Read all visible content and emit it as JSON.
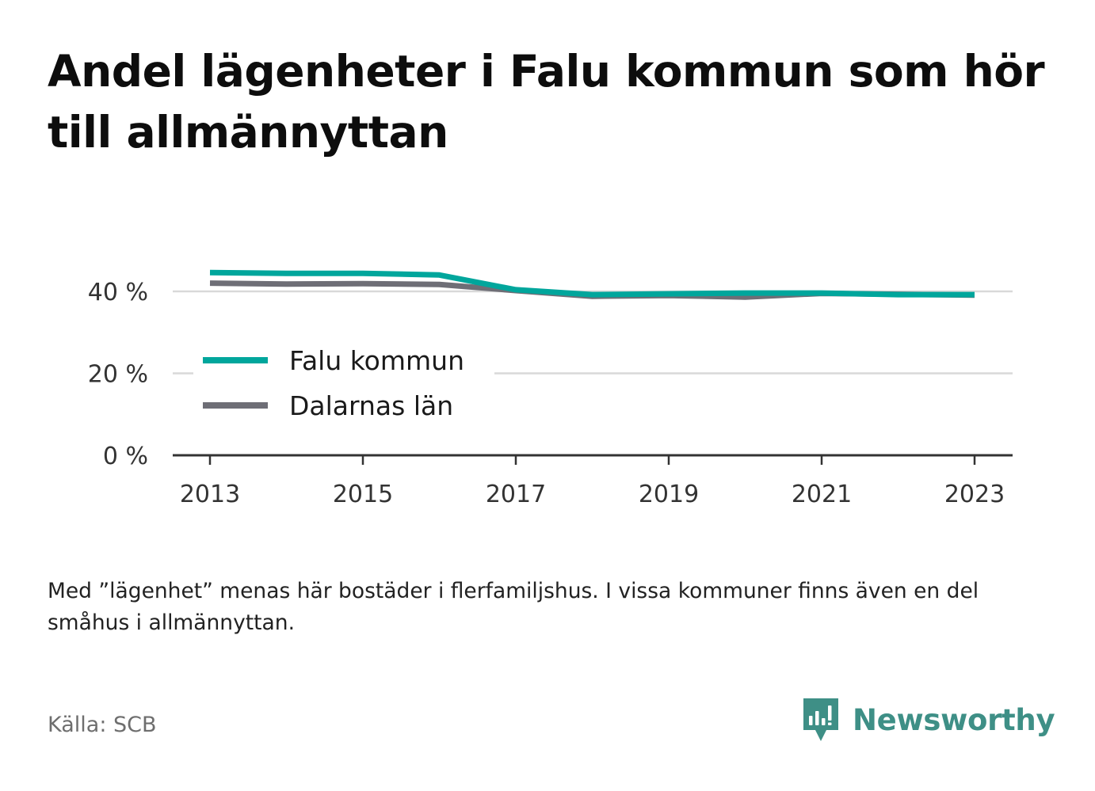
{
  "title": "Andel lägenheter i Falu kommun som hör till allmännyttan",
  "note": "Med ”lägenhet” menas här bostäder i flerfamiljshus. I vissa kommuner finns även en del småhus i allmännyttan.",
  "source": "Källa: SCB",
  "brand": {
    "name": "Newsworthy",
    "color": "#3e8f86",
    "icon": "newsworthy-logo-icon"
  },
  "chart_data": {
    "type": "line",
    "title": "Andel lägenheter i Falu kommun som hör till allmännyttan",
    "xlabel": "",
    "ylabel": "",
    "x": [
      2013,
      2014,
      2015,
      2016,
      2017,
      2018,
      2019,
      2020,
      2021,
      2022,
      2023
    ],
    "x_ticks": [
      "2013",
      "2015",
      "2017",
      "2019",
      "2021",
      "2023"
    ],
    "y_ticks": [
      "0 %",
      "20 %",
      "40 %"
    ],
    "ylim": [
      0,
      45
    ],
    "grid": true,
    "legend_position": "left",
    "series": [
      {
        "name": "Falu kommun",
        "color": "#00a69c",
        "values": [
          44.6,
          44.4,
          44.4,
          44.0,
          40.4,
          39.2,
          39.4,
          39.6,
          39.6,
          39.2,
          39.2
        ]
      },
      {
        "name": "Dalarnas län",
        "color": "#6e6e76",
        "values": [
          42.0,
          41.8,
          41.9,
          41.7,
          40.2,
          38.8,
          39.0,
          38.6,
          39.5,
          39.3,
          39.1
        ]
      }
    ]
  }
}
